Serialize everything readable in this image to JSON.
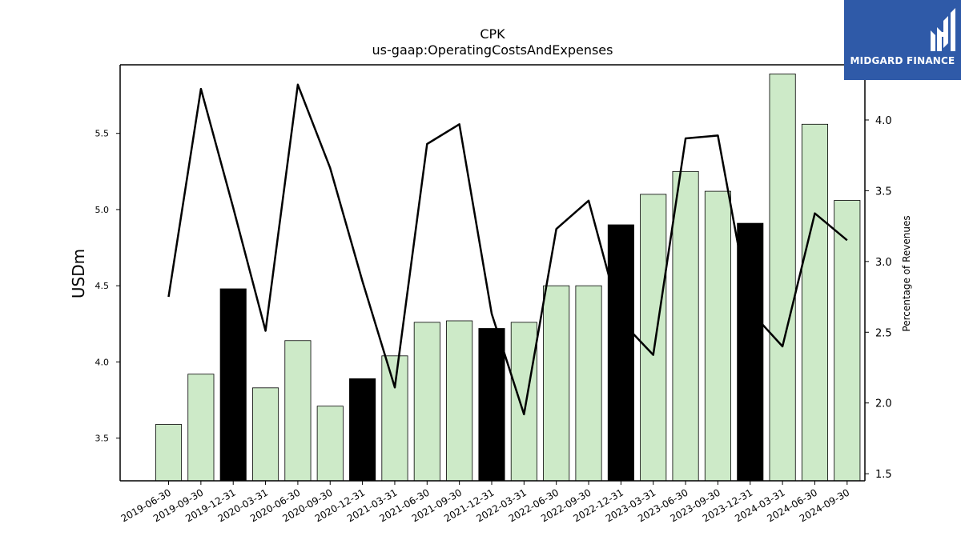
{
  "logo": {
    "text": "MIDGARD FINANCE",
    "bg_color": "#2f5aa8"
  },
  "chart_data": {
    "type": "bar",
    "title": "CPK",
    "subtitle": "us-gaap:OperatingCostsAndExpenses",
    "ylabel": "USDm",
    "ylabel_right": "Percentage of Revenues",
    "ylim": [
      3.22,
      5.95
    ],
    "ylim_right": [
      1.45,
      4.39
    ],
    "yticks": [
      "3.5",
      "4.0",
      "4.5",
      "5.0",
      "5.5"
    ],
    "yticks_right": [
      "1.5",
      "2.0",
      "2.5",
      "3.0",
      "3.5",
      "4.0"
    ],
    "grid": false,
    "categories": [
      "2019-06-30",
      "2019-09-30",
      "2019-12-31",
      "2020-03-31",
      "2020-06-30",
      "2020-09-30",
      "2020-12-31",
      "2021-03-31",
      "2021-06-30",
      "2021-09-30",
      "2021-12-31",
      "2022-03-31",
      "2022-06-30",
      "2022-09-30",
      "2022-12-31",
      "2023-03-31",
      "2023-06-30",
      "2023-09-30",
      "2023-12-31",
      "2024-03-31",
      "2024-06-30",
      "2024-09-30"
    ],
    "series": [
      {
        "kind": "bar",
        "values": [
          3.59,
          3.92,
          4.48,
          3.83,
          4.14,
          3.71,
          3.89,
          4.04,
          4.26,
          4.27,
          4.22,
          4.26,
          4.5,
          4.5,
          4.9,
          5.1,
          5.25,
          5.12,
          4.91,
          5.89,
          5.56,
          5.06
        ],
        "colors": [
          "#cdeac8",
          "#cdeac8",
          "#000000",
          "#cdeac8",
          "#cdeac8",
          "#cdeac8",
          "#000000",
          "#cdeac8",
          "#cdeac8",
          "#cdeac8",
          "#000000",
          "#cdeac8",
          "#cdeac8",
          "#cdeac8",
          "#000000",
          "#cdeac8",
          "#cdeac8",
          "#cdeac8",
          "#000000",
          "#cdeac8",
          "#cdeac8",
          "#cdeac8"
        ]
      },
      {
        "kind": "line",
        "axis": "right",
        "color": "#000000",
        "values": [
          2.75,
          4.22,
          3.38,
          2.51,
          4.25,
          3.66,
          2.86,
          2.11,
          3.83,
          3.97,
          2.63,
          1.92,
          3.23,
          3.43,
          2.58,
          2.34,
          3.87,
          3.89,
          2.65,
          2.4,
          3.34,
          3.15
        ]
      }
    ]
  }
}
